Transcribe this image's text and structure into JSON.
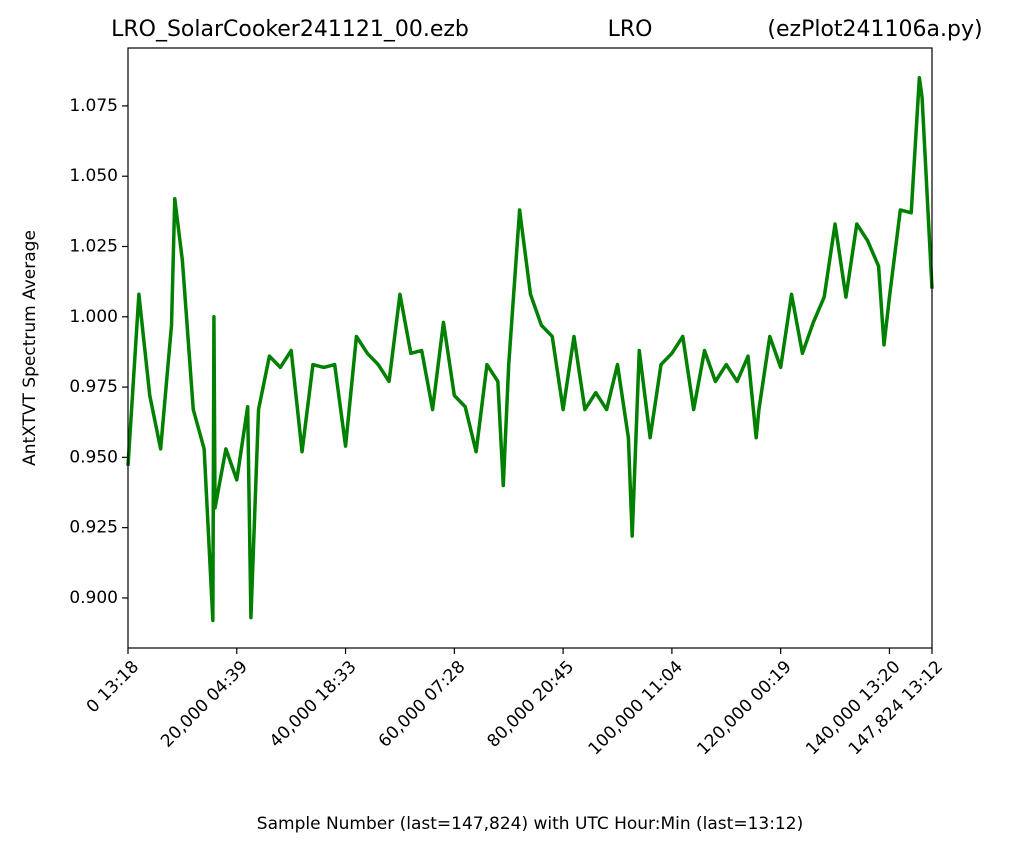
{
  "chart_data": {
    "type": "line",
    "title": [
      "LRO_SolarCooker241121_00.ezb",
      "LRO",
      "(ezPlot241106a.py)"
    ],
    "xlabel": "Sample Number (last=147,824) with UTC Hour:Min (last=13:12)",
    "ylabel": "AntXTVT Spectrum Average",
    "xlim": [
      0,
      147824
    ],
    "ylim": [
      0.8822,
      1.0956
    ],
    "xticks": [
      {
        "value": 0,
        "label": "0  13:18"
      },
      {
        "value": 20000,
        "label": "20,000  04:39"
      },
      {
        "value": 40000,
        "label": "40,000  18:33"
      },
      {
        "value": 60000,
        "label": "60,000  07:28"
      },
      {
        "value": 80000,
        "label": "80,000  20:45"
      },
      {
        "value": 100000,
        "label": "100,000  11:04"
      },
      {
        "value": 120000,
        "label": "120,000  00:19"
      },
      {
        "value": 140000,
        "label": "140,000  13:20"
      },
      {
        "value": 147824,
        "label": "147,824  13:12"
      }
    ],
    "yticks": [
      {
        "value": 0.9,
        "label": "0.900"
      },
      0.925,
      {
        "value": 0.95,
        "label": "0.950"
      },
      0.975,
      {
        "value": 1.0,
        "label": "1.000"
      },
      1.025,
      {
        "value": 1.05,
        "label": "1.050"
      },
      1.075
    ],
    "grid": false,
    "series": [
      {
        "color": "#008000",
        "x": [
          0,
          2000,
          4000,
          6000,
          8000,
          8600,
          10000,
          12000,
          14000,
          15600,
          15800,
          16000,
          18000,
          20000,
          22000,
          22600,
          24000,
          26000,
          28000,
          30000,
          32000,
          34000,
          36000,
          38000,
          40000,
          42000,
          44000,
          46000,
          48000,
          50000,
          52000,
          54000,
          56000,
          58000,
          60000,
          62000,
          64000,
          66000,
          68000,
          69000,
          70000,
          72000,
          74000,
          76000,
          78000,
          80000,
          82000,
          84000,
          86000,
          88000,
          90000,
          92000,
          92700,
          94000,
          96000,
          98000,
          100000,
          102000,
          104000,
          106000,
          108000,
          110000,
          112000,
          114000,
          115500,
          116000,
          118000,
          120000,
          122000,
          124000,
          126000,
          128000,
          130000,
          132000,
          134000,
          136000,
          138000,
          139000,
          140000,
          142000,
          144000,
          145500,
          146000,
          147824
        ],
        "values": [
          0.947,
          1.008,
          0.972,
          0.953,
          0.997,
          1.042,
          1.02,
          0.967,
          0.953,
          0.892,
          1.0,
          0.932,
          0.953,
          0.942,
          0.968,
          0.893,
          0.967,
          0.986,
          0.982,
          0.988,
          0.952,
          0.983,
          0.982,
          0.983,
          0.954,
          0.993,
          0.987,
          0.983,
          0.977,
          1.008,
          0.987,
          0.988,
          0.967,
          0.998,
          0.972,
          0.968,
          0.952,
          0.983,
          0.977,
          0.94,
          0.983,
          1.038,
          1.008,
          0.997,
          0.993,
          0.967,
          0.993,
          0.967,
          0.973,
          0.967,
          0.983,
          0.957,
          0.922,
          0.988,
          0.957,
          0.983,
          0.987,
          0.993,
          0.967,
          0.988,
          0.977,
          0.983,
          0.977,
          0.986,
          0.957,
          0.967,
          0.993,
          0.982,
          1.008,
          0.987,
          0.998,
          1.007,
          1.033,
          1.007,
          1.033,
          1.027,
          1.018,
          0.99,
          1.007,
          1.038,
          1.037,
          1.085,
          1.078,
          1.01
        ]
      }
    ]
  }
}
